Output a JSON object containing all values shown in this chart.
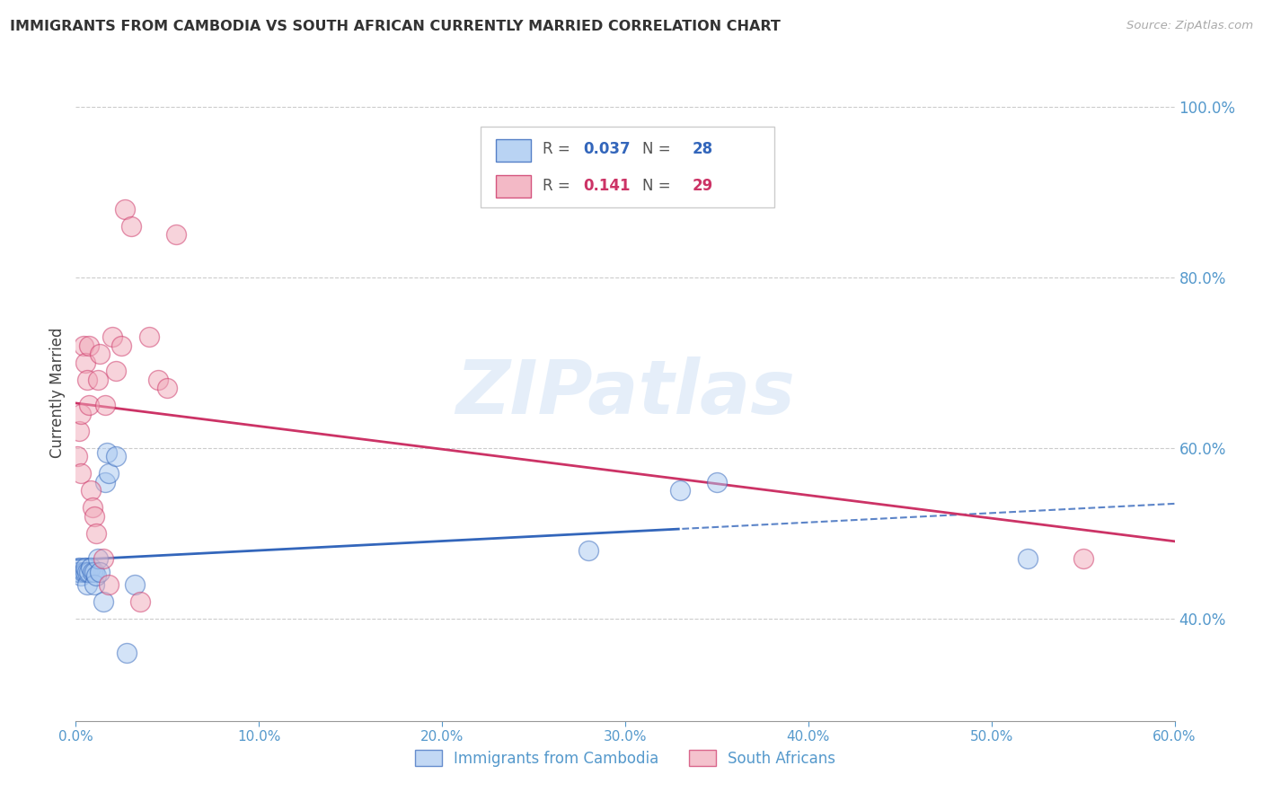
{
  "title": "IMMIGRANTS FROM CAMBODIA VS SOUTH AFRICAN CURRENTLY MARRIED CORRELATION CHART",
  "source": "Source: ZipAtlas.com",
  "ylabel": "Currently Married",
  "watermark": "ZIPatlas",
  "xlim": [
    0.0,
    0.6
  ],
  "ylim": [
    0.28,
    1.05
  ],
  "blue_color": "#a8c8f0",
  "pink_color": "#f0a8b8",
  "blue_line_color": "#3366bb",
  "pink_line_color": "#cc3366",
  "axis_color": "#5599cc",
  "grid_color": "#cccccc",
  "background": "#ffffff",
  "yticks": [
    0.4,
    0.6,
    0.8,
    1.0
  ],
  "ytick_labels": [
    "40.0%",
    "60.0%",
    "80.0%",
    "100.0%"
  ],
  "xticks": [
    0.0,
    0.1,
    0.2,
    0.3,
    0.4,
    0.5,
    0.6
  ],
  "xtick_labels": [
    "0.0%",
    "10.0%",
    "20.0%",
    "30.0%",
    "40.0%",
    "50.0%",
    "60.0%"
  ],
  "cambodia_x": [
    0.001,
    0.002,
    0.002,
    0.003,
    0.004,
    0.005,
    0.005,
    0.006,
    0.006,
    0.007,
    0.008,
    0.009,
    0.01,
    0.01,
    0.011,
    0.012,
    0.013,
    0.015,
    0.016,
    0.017,
    0.018,
    0.022,
    0.028,
    0.032,
    0.28,
    0.33,
    0.35,
    0.52
  ],
  "cambodia_y": [
    0.455,
    0.455,
    0.46,
    0.45,
    0.455,
    0.455,
    0.46,
    0.44,
    0.455,
    0.455,
    0.46,
    0.455,
    0.455,
    0.44,
    0.45,
    0.47,
    0.455,
    0.42,
    0.56,
    0.595,
    0.57,
    0.59,
    0.36,
    0.44,
    0.48,
    0.55,
    0.56,
    0.47
  ],
  "sa_x": [
    0.001,
    0.002,
    0.003,
    0.003,
    0.004,
    0.005,
    0.006,
    0.007,
    0.007,
    0.008,
    0.009,
    0.01,
    0.011,
    0.012,
    0.013,
    0.015,
    0.016,
    0.018,
    0.02,
    0.022,
    0.025,
    0.027,
    0.03,
    0.035,
    0.04,
    0.045,
    0.05,
    0.055,
    0.55
  ],
  "sa_y": [
    0.59,
    0.62,
    0.57,
    0.64,
    0.72,
    0.7,
    0.68,
    0.65,
    0.72,
    0.55,
    0.53,
    0.52,
    0.5,
    0.68,
    0.71,
    0.47,
    0.65,
    0.44,
    0.73,
    0.69,
    0.72,
    0.88,
    0.86,
    0.42,
    0.73,
    0.68,
    0.67,
    0.85,
    0.47
  ],
  "cambodia_solid_max": 0.33,
  "legend_R_cam": "0.037",
  "legend_N_cam": "28",
  "legend_R_sa": "0.141",
  "legend_N_sa": "29",
  "legend_labels": [
    "Immigrants from Cambodia",
    "South Africans"
  ]
}
